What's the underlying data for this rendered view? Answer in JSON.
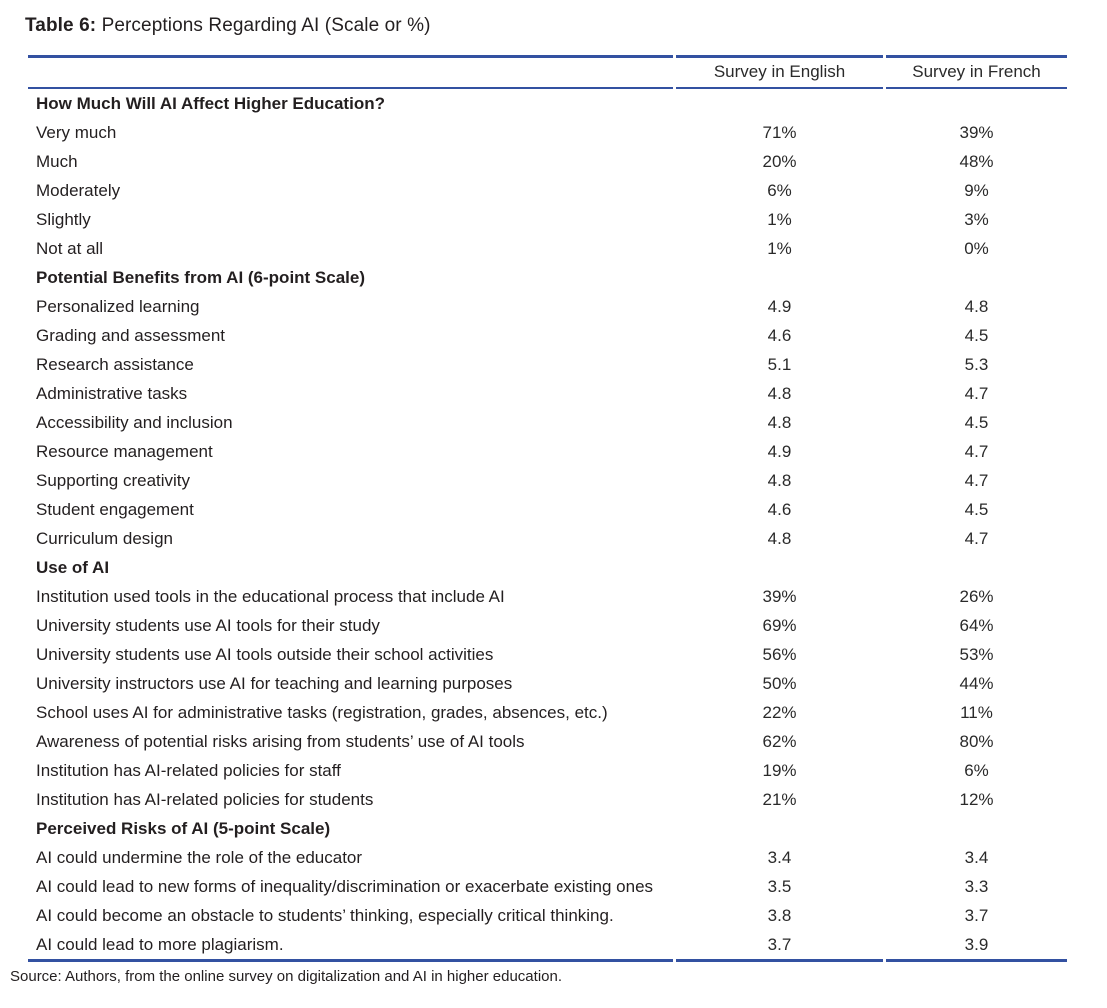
{
  "title": {
    "label": "Table 6:",
    "caption": " Perceptions Regarding AI (Scale or %)"
  },
  "colors": {
    "rule_blue": "#3351a1",
    "text": "#231f20"
  },
  "columns": [
    "",
    "Survey in English",
    "Survey in French"
  ],
  "chart_data": {
    "type": "table",
    "title": "Table 6: Perceptions Regarding AI (Scale or %)",
    "columns": [
      "Survey in English",
      "Survey in French"
    ],
    "sections": [
      {
        "header": "How Much Will AI Affect Higher Education?",
        "rows": [
          {
            "label": "Very much",
            "english": "71%",
            "french": "39%"
          },
          {
            "label": "Much",
            "english": "20%",
            "french": "48%"
          },
          {
            "label": "Moderately",
            "english": "6%",
            "french": "9%"
          },
          {
            "label": "Slightly",
            "english": "1%",
            "french": "3%"
          },
          {
            "label": "Not at all",
            "english": "1%",
            "french": "0%"
          }
        ]
      },
      {
        "header": "Potential Benefits from AI (6-point Scale)",
        "rows": [
          {
            "label": "Personalized learning",
            "english": "4.9",
            "french": "4.8"
          },
          {
            "label": "Grading and assessment",
            "english": "4.6",
            "french": "4.5"
          },
          {
            "label": "Research assistance",
            "english": "5.1",
            "french": "5.3"
          },
          {
            "label": "Administrative tasks",
            "english": "4.8",
            "french": "4.7"
          },
          {
            "label": "Accessibility and inclusion",
            "english": "4.8",
            "french": "4.5"
          },
          {
            "label": "Resource management",
            "english": "4.9",
            "french": "4.7"
          },
          {
            "label": "Supporting creativity",
            "english": "4.8",
            "french": "4.7"
          },
          {
            "label": "Student engagement",
            "english": "4.6",
            "french": "4.5"
          },
          {
            "label": "Curriculum design",
            "english": "4.8",
            "french": "4.7"
          }
        ]
      },
      {
        "header": "Use of AI",
        "rows": [
          {
            "label": "Institution used tools in the educational process that include AI",
            "english": "39%",
            "french": "26%"
          },
          {
            "label": "University students use AI tools for their study",
            "english": "69%",
            "french": "64%"
          },
          {
            "label": "University students use AI tools outside their school activities",
            "english": "56%",
            "french": "53%"
          },
          {
            "label": "University instructors use AI for teaching and learning purposes",
            "english": "50%",
            "french": "44%"
          },
          {
            "label": "School uses AI for administrative tasks (registration, grades, absences, etc.)",
            "english": "22%",
            "french": "11%"
          },
          {
            "label": "Awareness of potential risks arising from students’ use of AI tools",
            "english": "62%",
            "french": "80%"
          },
          {
            "label": "Institution has AI-related policies for staff",
            "english": "19%",
            "french": "6%"
          },
          {
            "label": "Institution has AI-related policies for students",
            "english": "21%",
            "french": "12%"
          }
        ]
      },
      {
        "header": "Perceived Risks of AI (5-point Scale)",
        "rows": [
          {
            "label": "AI could undermine the role of the educator",
            "english": "3.4",
            "french": "3.4"
          },
          {
            "label": "AI could lead to new forms of inequality/discrimination or exacerbate existing ones",
            "english": "3.5",
            "french": "3.3"
          },
          {
            "label": "AI could become an obstacle to students’ thinking, especially critical thinking.",
            "english": "3.8",
            "french": "3.7"
          },
          {
            "label": "AI could lead to more plagiarism.",
            "english": "3.7",
            "french": "3.9"
          }
        ]
      }
    ]
  },
  "source": "Source: Authors, from the online survey on digitalization and AI in higher education."
}
